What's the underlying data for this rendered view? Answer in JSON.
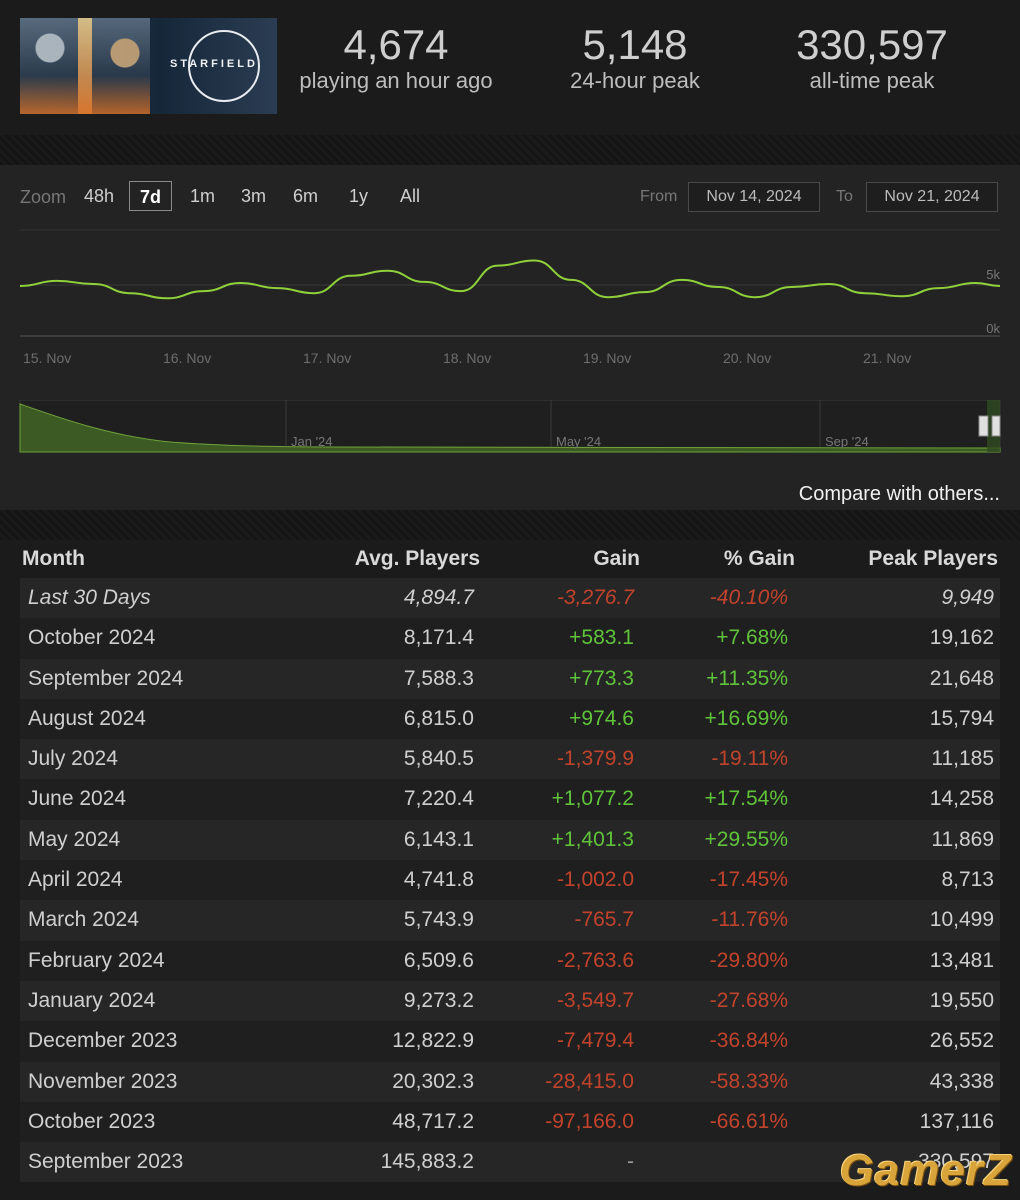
{
  "header": {
    "capsule_logo_text": "STARFIELD",
    "stats": [
      {
        "value": "4,674",
        "label": "playing an hour ago"
      },
      {
        "value": "5,148",
        "label": "24-hour peak"
      },
      {
        "value": "330,597",
        "label": "all-time peak"
      }
    ]
  },
  "controls": {
    "zoom_label": "Zoom",
    "zoom_options": [
      "48h",
      "7d",
      "1m",
      "3m",
      "6m",
      "1y",
      "All"
    ],
    "zoom_selected": "7d",
    "from_label": "From",
    "from_value": "Nov 14, 2024",
    "to_label": "To",
    "to_value": "Nov 21, 2024"
  },
  "chart_data": [
    {
      "type": "line",
      "x_ticks": [
        "15. Nov",
        "16. Nov",
        "17. Nov",
        "18. Nov",
        "19. Nov",
        "20. Nov",
        "21. Nov"
      ],
      "y_ticks": [
        "5k",
        "0k"
      ],
      "ylim": [
        0,
        10000
      ],
      "series": [
        {
          "x": [
            14.0,
            14.3,
            14.6,
            14.9,
            15.2,
            15.5,
            15.8,
            16.1,
            16.4,
            16.7,
            17.0,
            17.3,
            17.6,
            17.9,
            18.2,
            18.5,
            18.8,
            19.1,
            19.4,
            19.7,
            20.0,
            20.3,
            20.6,
            20.9,
            21.2,
            21.5,
            21.8,
            22.0
          ],
          "y": [
            4900,
            5400,
            5100,
            4200,
            3700,
            4400,
            5200,
            4700,
            4200,
            5900,
            6400,
            5300,
            4400,
            6900,
            7400,
            5500,
            3800,
            4300,
            5500,
            4800,
            3800,
            4800,
            5100,
            4200,
            3900,
            4700,
            5200,
            4900
          ]
        }
      ]
    },
    {
      "type": "area",
      "x_ticks": [
        "Jan '24",
        "May '24",
        "Sep '24"
      ]
    }
  ],
  "compare_link": "Compare with others...",
  "table": {
    "columns": [
      "Month",
      "Avg. Players",
      "Gain",
      "% Gain",
      "Peak Players"
    ],
    "rows": [
      {
        "month": "Last 30 Days",
        "avg": "4,894.7",
        "gain": "-3,276.7",
        "pct": "-40.10%",
        "peak": "9,949",
        "sign": "neg"
      },
      {
        "month": "October 2024",
        "avg": "8,171.4",
        "gain": "+583.1",
        "pct": "+7.68%",
        "peak": "19,162",
        "sign": "pos"
      },
      {
        "month": "September 2024",
        "avg": "7,588.3",
        "gain": "+773.3",
        "pct": "+11.35%",
        "peak": "21,648",
        "sign": "pos"
      },
      {
        "month": "August 2024",
        "avg": "6,815.0",
        "gain": "+974.6",
        "pct": "+16.69%",
        "peak": "15,794",
        "sign": "pos"
      },
      {
        "month": "July 2024",
        "avg": "5,840.5",
        "gain": "-1,379.9",
        "pct": "-19.11%",
        "peak": "11,185",
        "sign": "neg"
      },
      {
        "month": "June 2024",
        "avg": "7,220.4",
        "gain": "+1,077.2",
        "pct": "+17.54%",
        "peak": "14,258",
        "sign": "pos"
      },
      {
        "month": "May 2024",
        "avg": "6,143.1",
        "gain": "+1,401.3",
        "pct": "+29.55%",
        "peak": "11,869",
        "sign": "pos"
      },
      {
        "month": "April 2024",
        "avg": "4,741.8",
        "gain": "-1,002.0",
        "pct": "-17.45%",
        "peak": "8,713",
        "sign": "neg"
      },
      {
        "month": "March 2024",
        "avg": "5,743.9",
        "gain": "-765.7",
        "pct": "-11.76%",
        "peak": "10,499",
        "sign": "neg"
      },
      {
        "month": "February 2024",
        "avg": "6,509.6",
        "gain": "-2,763.6",
        "pct": "-29.80%",
        "peak": "13,481",
        "sign": "neg"
      },
      {
        "month": "January 2024",
        "avg": "9,273.2",
        "gain": "-3,549.7",
        "pct": "-27.68%",
        "peak": "19,550",
        "sign": "neg"
      },
      {
        "month": "December 2023",
        "avg": "12,822.9",
        "gain": "-7,479.4",
        "pct": "-36.84%",
        "peak": "26,552",
        "sign": "neg"
      },
      {
        "month": "November 2023",
        "avg": "20,302.3",
        "gain": "-28,415.0",
        "pct": "-58.33%",
        "peak": "43,338",
        "sign": "neg"
      },
      {
        "month": "October 2023",
        "avg": "48,717.2",
        "gain": "-97,166.0",
        "pct": "-66.61%",
        "peak": "137,116",
        "sign": "neg"
      },
      {
        "month": "September 2023",
        "avg": "145,883.2",
        "gain": "-",
        "pct": "",
        "peak": "330,597",
        "sign": "none"
      }
    ]
  },
  "watermark": "GamerZ",
  "colors": {
    "line": "#8fd13a",
    "positive": "#5fc43a",
    "negative": "#c2432c",
    "area_fill": "#3c5a24"
  }
}
